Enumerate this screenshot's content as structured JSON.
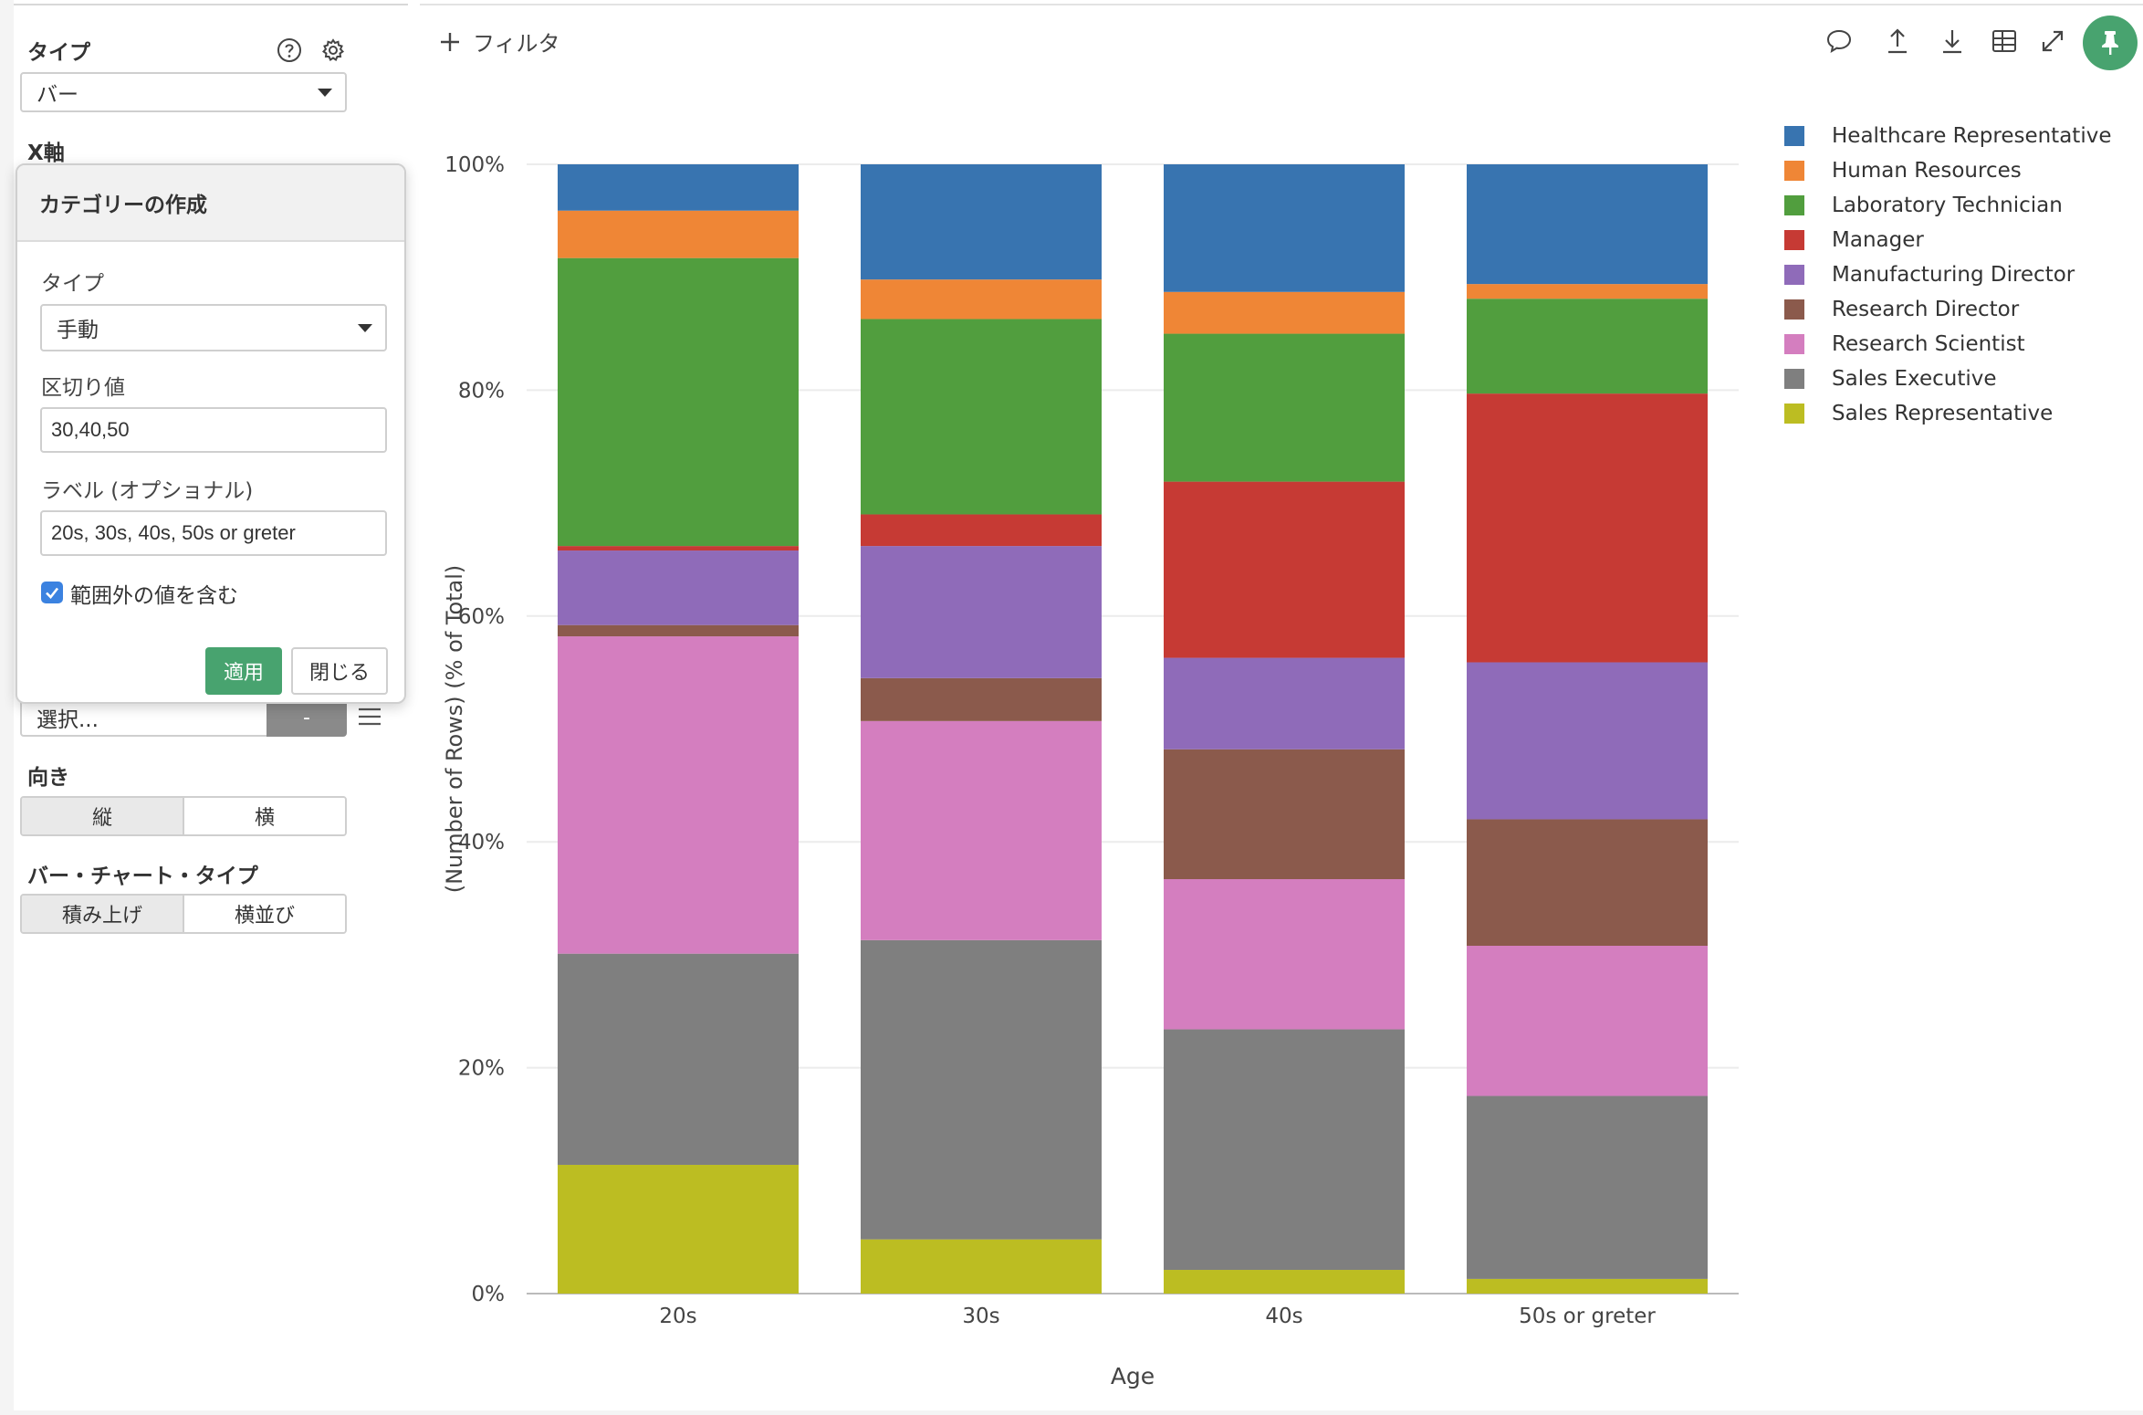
{
  "left_panel": {
    "type_label": "タイプ",
    "type_value": "バー",
    "x_axis_label": "X軸",
    "category_select_value": "選択...",
    "dash_button_label": "-",
    "orientation_label": "向き",
    "orientation_options": [
      "縦",
      "横"
    ],
    "orientation_selected": "縦",
    "bar_chart_type_label": "バー・チャート・タイプ",
    "bar_chart_type_options": [
      "積み上げ",
      "横並び"
    ],
    "bar_chart_type_selected": "積み上げ"
  },
  "popover": {
    "title": "カテゴリーの作成",
    "type_label": "タイプ",
    "type_value": "手動",
    "breaks_label": "区切り値",
    "breaks_value": "30,40,50",
    "labels_label": "ラベル (オプショナル)",
    "labels_value": "20s, 30s, 40s, 50s or greter",
    "include_out_of_range_label": "範囲外の値を含む",
    "include_out_of_range_checked": true,
    "apply_label": "適用",
    "close_label": "閉じる"
  },
  "toolbar": {
    "filter_label": "フィルタ",
    "icons": [
      "comment-icon",
      "upload-icon",
      "download-icon",
      "table-icon",
      "expand-icon",
      "pin-icon"
    ],
    "pin_color": "#48a36f"
  },
  "chart_data": {
    "type": "bar",
    "stacked": true,
    "xlabel": "Age",
    "ylabel": "(Number of Rows) (% of Total)",
    "yticks": [
      "0%",
      "20%",
      "40%",
      "60%",
      "80%",
      "100%"
    ],
    "ylim": [
      0,
      100
    ],
    "categories": [
      "20s",
      "30s",
      "40s",
      "50s or greter"
    ],
    "legend_position": "right",
    "series": [
      {
        "name": "Sales Representative",
        "color": "#bcbd22",
        "values": [
          11.4,
          4.8,
          2.1,
          1.3
        ]
      },
      {
        "name": "Sales Executive",
        "color": "#7f7f7f",
        "values": [
          18.7,
          26.5,
          21.3,
          16.2
        ]
      },
      {
        "name": "Research Scientist",
        "color": "#d47ebf",
        "values": [
          28.1,
          19.4,
          13.3,
          13.3
        ]
      },
      {
        "name": "Research Director",
        "color": "#8b5a4c",
        "values": [
          1.0,
          3.8,
          11.5,
          11.2
        ]
      },
      {
        "name": "Manufacturing Director",
        "color": "#8f6bb9",
        "values": [
          6.6,
          11.7,
          8.1,
          13.9
        ]
      },
      {
        "name": "Manager",
        "color": "#c63a34",
        "values": [
          0.4,
          2.8,
          15.6,
          23.8
        ]
      },
      {
        "name": "Laboratory Technician",
        "color": "#519e3e",
        "values": [
          25.5,
          17.3,
          13.1,
          8.4
        ]
      },
      {
        "name": "Human Resources",
        "color": "#ef8636",
        "values": [
          4.2,
          3.5,
          3.7,
          1.3
        ]
      },
      {
        "name": "Healthcare Representative",
        "color": "#3874b0",
        "values": [
          4.1,
          10.2,
          11.3,
          10.6
        ]
      }
    ],
    "legend_order": [
      "Healthcare Representative",
      "Human Resources",
      "Laboratory Technician",
      "Manager",
      "Manufacturing Director",
      "Research Director",
      "Research Scientist",
      "Sales Executive",
      "Sales Representative"
    ]
  }
}
